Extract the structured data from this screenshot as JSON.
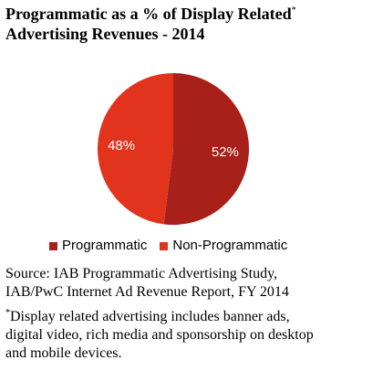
{
  "chart_data": {
    "type": "pie",
    "title_lines": [
      "Programmatic as a % of  Display Related",
      "Advertising Revenues - 2014"
    ],
    "title_footnote_mark": "*",
    "slices": [
      {
        "name": "Programmatic",
        "value": 52,
        "label": "52%",
        "color": "#a8201a"
      },
      {
        "name": "Non-Programmatic",
        "value": 48,
        "label": "48%",
        "color": "#e2331d"
      }
    ],
    "legend_position": "bottom"
  },
  "source": {
    "lines": [
      "Source: IAB Programmatic Advertising Study,",
      "IAB/PwC Internet Ad Revenue Report, FY 2014"
    ]
  },
  "footnote": {
    "mark": "*",
    "lines": [
      "Display related advertising includes banner ads,",
      "digital video, rich media and sponsorship on desktop",
      "and mobile devices."
    ]
  }
}
